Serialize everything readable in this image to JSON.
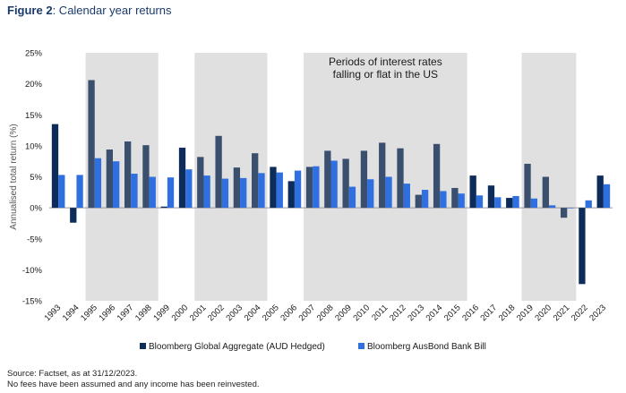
{
  "figure": {
    "label": "Figure 2",
    "caption": ": Calendar year returns"
  },
  "chart_data": {
    "type": "bar",
    "title": "Calendar year returns",
    "ylabel": "Annualised total return (%)",
    "xlabel": "",
    "ylim": [
      -15,
      25
    ],
    "yticks": [
      -15,
      -10,
      -5,
      0,
      5,
      10,
      15,
      20,
      25
    ],
    "ytick_labels": [
      "-15%",
      "-10%",
      "-5%",
      "0%",
      "5%",
      "10%",
      "15%",
      "20%",
      "25%"
    ],
    "categories": [
      "1993",
      "1994",
      "1995",
      "1996",
      "1997",
      "1998",
      "1999",
      "2000",
      "2001",
      "2002",
      "2003",
      "2004",
      "2005",
      "2006",
      "2007",
      "2008",
      "2009",
      "2010",
      "2011",
      "2012",
      "2013",
      "2014",
      "2015",
      "2016",
      "2017",
      "2018",
      "2019",
      "2020",
      "2021",
      "2022",
      "2023"
    ],
    "series": [
      {
        "name": "Bloomberg Global Aggregate (AUD Hedged)",
        "values": [
          13.5,
          -2.4,
          20.6,
          9.4,
          10.7,
          10.1,
          0.2,
          9.7,
          8.2,
          11.6,
          6.5,
          8.8,
          6.6,
          4.3,
          6.6,
          9.2,
          7.9,
          9.2,
          10.5,
          9.6,
          2.1,
          10.3,
          3.2,
          5.2,
          3.6,
          1.6,
          7.1,
          5.0,
          -1.6,
          -12.3,
          5.2
        ],
        "color_normal": "#0d2c5a",
        "color_shaded": "#3a4f6e"
      },
      {
        "name": "Bloomberg AusBond Bank Bill",
        "values": [
          5.3,
          5.3,
          8.0,
          7.5,
          5.5,
          5.0,
          4.9,
          6.2,
          5.2,
          4.7,
          4.8,
          5.6,
          5.7,
          6.0,
          6.7,
          7.6,
          3.4,
          4.6,
          5.0,
          3.9,
          2.9,
          2.7,
          2.3,
          2.0,
          1.7,
          1.9,
          1.5,
          0.4,
          0.0,
          1.2,
          3.8
        ],
        "color": "#2f6fe0"
      }
    ],
    "shaded_periods": [
      {
        "from": "1995",
        "to": "1998"
      },
      {
        "from": "2001",
        "to": "2004"
      },
      {
        "from": "2007",
        "to": "2015"
      },
      {
        "from": "2019",
        "to": "2021"
      }
    ],
    "annotation": [
      "Periods of interest rates",
      "falling or flat in the US"
    ],
    "grid": false,
    "legend_position": "bottom"
  },
  "footer": {
    "source": "Source: Factset, as at 31/12/2023.",
    "note": "No fees have been assumed and any income has been reinvested."
  },
  "colors": {
    "shade": "#e0e0e0",
    "axis": "#999999",
    "title": "#1b3a6b"
  }
}
